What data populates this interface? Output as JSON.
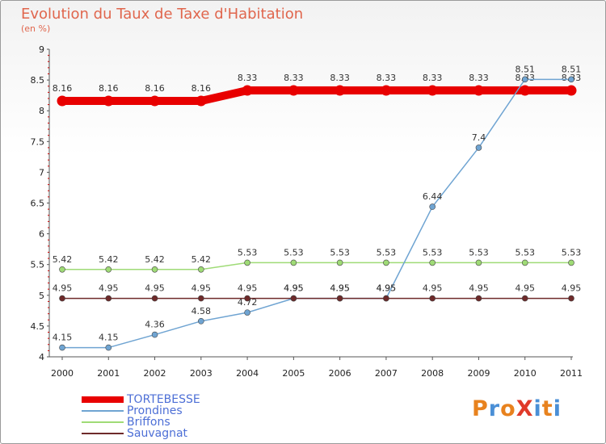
{
  "chart_data": {
    "type": "line",
    "title": "Evolution du Taux de Taxe d'Habitation",
    "subtitle": "(en %)",
    "xlabel": "",
    "ylabel": "",
    "ylim": [
      4,
      9
    ],
    "ystep": 0.5,
    "x": [
      "2000",
      "2001",
      "2002",
      "2003",
      "2004",
      "2005",
      "2006",
      "2007",
      "2008",
      "2009",
      "2010",
      "2011"
    ],
    "series": [
      {
        "name": "TORTEBESSE",
        "color": "#e80000",
        "values": [
          8.16,
          8.16,
          8.16,
          8.16,
          8.33,
          8.33,
          8.33,
          8.33,
          8.33,
          8.33,
          8.33,
          8.33
        ],
        "labels": [
          "8.16",
          "8.16",
          "8.16",
          "8.16",
          "8.33",
          "8.33",
          "8.33",
          "8.33",
          "8.33",
          "8.33",
          "8.33",
          "8.33"
        ]
      },
      {
        "name": "Prondines",
        "color": "#6fa4d2",
        "values": [
          4.15,
          4.15,
          4.36,
          4.58,
          4.72,
          4.95,
          4.95,
          4.95,
          6.44,
          7.4,
          8.51,
          8.51
        ],
        "labels": [
          "4.15",
          "4.15",
          "4.36",
          "4.58",
          "4.72",
          "4.95",
          "4.95",
          "4.95",
          "6.44",
          "7.4",
          "8.51",
          "8.51"
        ]
      },
      {
        "name": "Briffons",
        "color": "#9fdb76",
        "values": [
          5.42,
          5.42,
          5.42,
          5.42,
          5.53,
          5.53,
          5.53,
          5.53,
          5.53,
          5.53,
          5.53,
          5.53
        ],
        "labels": [
          "5.42",
          "5.42",
          "5.42",
          "5.42",
          "5.53",
          "5.53",
          "5.53",
          "5.53",
          "5.53",
          "5.53",
          "5.53",
          "5.53"
        ]
      },
      {
        "name": "Sauvagnat",
        "color": "#6e2a2a",
        "values": [
          4.95,
          4.95,
          4.95,
          4.95,
          4.95,
          4.95,
          4.95,
          4.95,
          4.95,
          4.95,
          4.95,
          4.95
        ],
        "labels": [
          "4.95",
          "4.95",
          "4.95",
          "4.95",
          "4.95",
          "4.95",
          "4.95",
          "4.95",
          "4.95",
          "4.95",
          "4.95",
          "4.95"
        ]
      }
    ]
  },
  "logo": {
    "text": "ProXiti"
  }
}
